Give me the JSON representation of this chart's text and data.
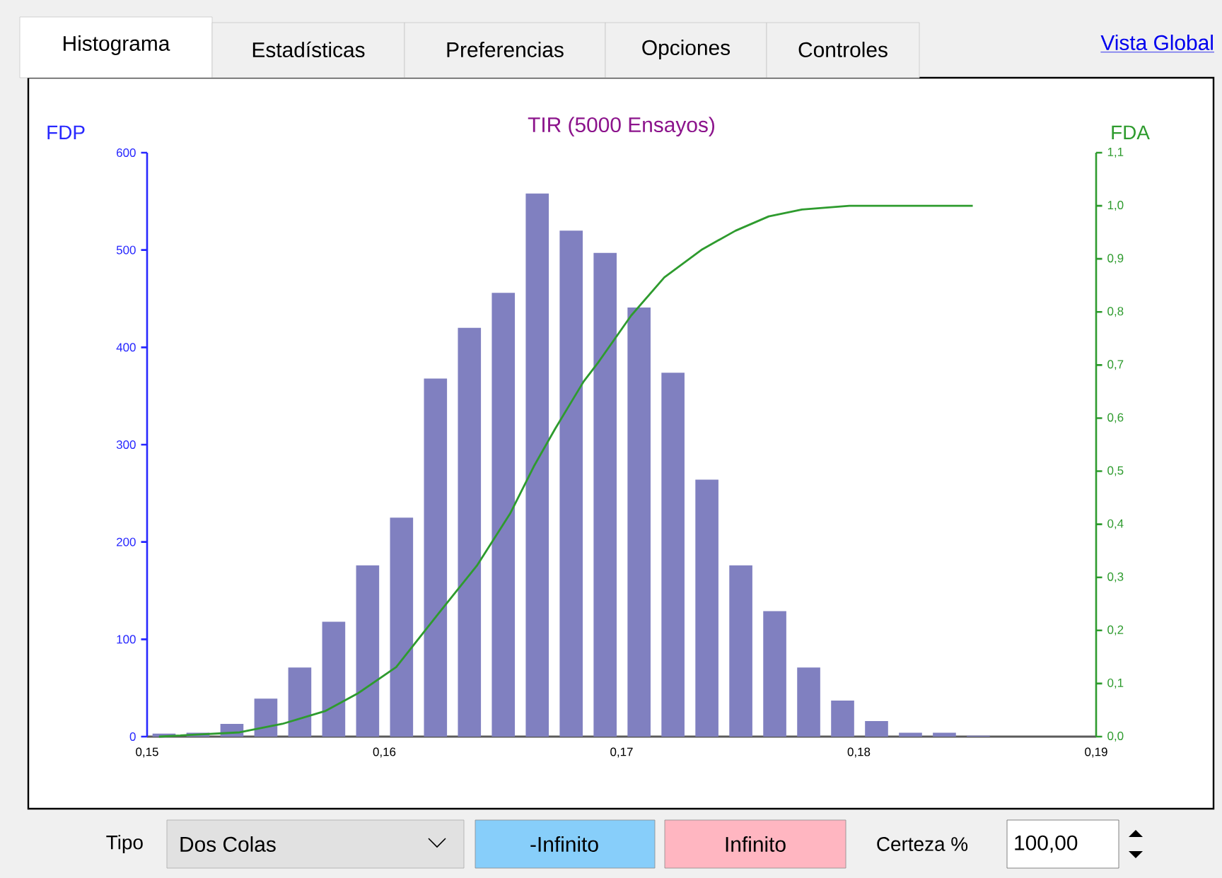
{
  "chart_data": {
    "type": "histogram",
    "title": "TIR (5000 Ensayos)",
    "ylabel": "FDP",
    "y2label": "FDA",
    "bins": [
      0.15,
      0.15143,
      0.15286,
      0.15429,
      0.15572,
      0.15715,
      0.15858,
      0.16001,
      0.16144,
      0.16287,
      0.1643,
      0.16573,
      0.16716,
      0.16859,
      0.17002,
      0.17145,
      0.17288,
      0.17431,
      0.17574,
      0.17717,
      0.1786,
      0.18003,
      0.18146,
      0.18289,
      0.18432,
      0.18575
    ],
    "series": [
      {
        "color": "#8080c0",
        "values": [
          3,
          4,
          13,
          39,
          71,
          118,
          176,
          225,
          368,
          420,
          456,
          558,
          520,
          497,
          441,
          374,
          264,
          176,
          129,
          71,
          37,
          16,
          4,
          4,
          1
        ]
      },
      {
        "type": "line",
        "axis": "y2",
        "color": "#2e9b2e",
        "x": [
          0.1505,
          0.1539,
          0.1557,
          0.1575,
          0.1589,
          0.1605,
          0.1623,
          0.1639,
          0.1653,
          0.1663,
          0.1672,
          0.1684,
          0.169,
          0.1704,
          0.1718,
          0.1734,
          0.1748,
          0.1762,
          0.1776,
          0.1796,
          0.1848
        ],
        "values": [
          0,
          0.008,
          0.024,
          0.048,
          0.082,
          0.131,
          0.233,
          0.322,
          0.42,
          0.509,
          0.58,
          0.669,
          0.704,
          0.793,
          0.865,
          0.918,
          0.953,
          0.98,
          0.993,
          1.0,
          1.0
        ]
      }
    ],
    "xlim": [
      0.15,
      0.19
    ],
    "xticks": [
      {
        "value": 0.15,
        "label": "0,15"
      },
      {
        "value": 0.16,
        "label": "0,16"
      },
      {
        "value": 0.17,
        "label": "0,17"
      },
      {
        "value": 0.18,
        "label": "0,18"
      },
      {
        "value": 0.19,
        "label": "0,19"
      }
    ],
    "ylim": [
      0,
      600
    ],
    "yticks": [
      0,
      100,
      200,
      300,
      400,
      500,
      600
    ],
    "y2lim": [
      0,
      1.1
    ],
    "y2ticks": [
      {
        "value": 0,
        "label": "0,0"
      },
      {
        "value": 0.1,
        "label": "0,1"
      },
      {
        "value": 0.2,
        "label": "0,2"
      },
      {
        "value": 0.3,
        "label": "0,3"
      },
      {
        "value": 0.4,
        "label": "0,4"
      },
      {
        "value": 0.5,
        "label": "0,5"
      },
      {
        "value": 0.6,
        "label": "0,6"
      },
      {
        "value": 0.7,
        "label": "0,7"
      },
      {
        "value": 0.8,
        "label": "0,8"
      },
      {
        "value": 0.9,
        "label": "0,9"
      },
      {
        "value": 1.0,
        "label": "1,0"
      },
      {
        "value": 1.1,
        "label": "1,1"
      }
    ],
    "annotations": [
      "Histograma",
      "Estadísticas",
      "Preferencias",
      "Opciones",
      "Controles",
      "Vista Global",
      "Tipo",
      "Dos Colas",
      "-Infinito",
      "Infinito",
      "Certeza %",
      "100,00"
    ]
  }
}
